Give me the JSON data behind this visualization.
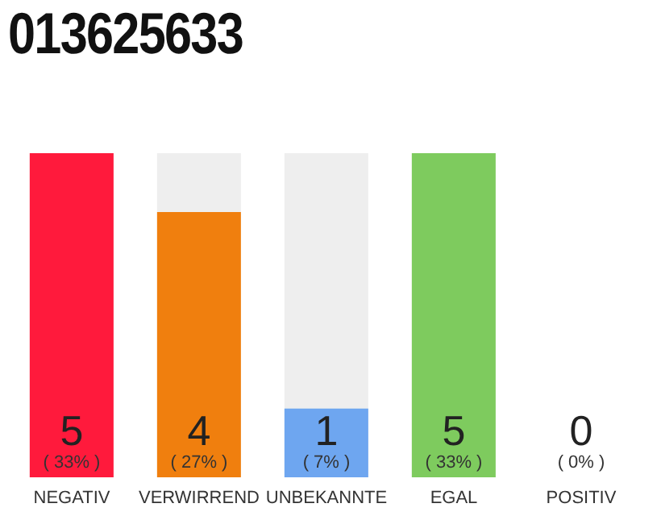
{
  "chart_data": {
    "type": "bar",
    "title": "013625633",
    "categories": [
      "NEGATIV",
      "VERWIRREND",
      "UNBEKANNTE",
      "EGAL",
      "POSITIV"
    ],
    "values": [
      33,
      27,
      7,
      33,
      0
    ],
    "colors": [
      "#ff1a3c",
      "#f07f0e",
      "#6ea6f0",
      "#7ecb5e",
      "#bbbbbb"
    ],
    "value_labels": [
      "( 33% )",
      "( 27% )",
      "( 7% )",
      "( 33% )",
      "( 0% )"
    ],
    "annotations": [
      "5",
      "4",
      "1",
      "5",
      "0"
    ]
  }
}
